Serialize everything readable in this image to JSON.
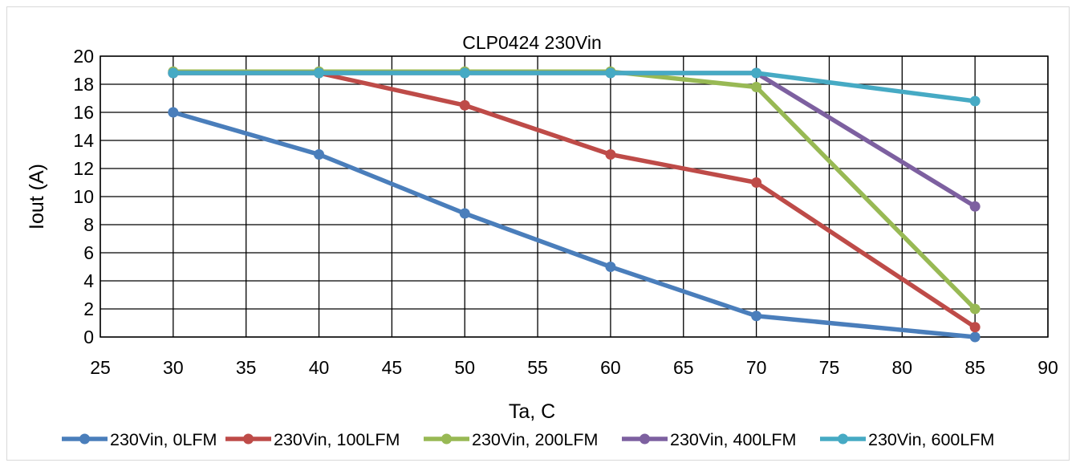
{
  "chart_data": {
    "type": "line",
    "title": "CLP0424 230Vin",
    "xlabel": "Ta, C",
    "ylabel": "Iout (A)",
    "xlim": [
      25,
      90
    ],
    "ylim": [
      0,
      20
    ],
    "xticks": [
      25,
      30,
      35,
      40,
      45,
      50,
      55,
      60,
      65,
      70,
      75,
      80,
      85,
      90
    ],
    "yticks": [
      0,
      2,
      4,
      6,
      8,
      10,
      12,
      14,
      16,
      18,
      20
    ],
    "grid": true,
    "legend_position": "bottom",
    "x": [
      30,
      40,
      50,
      60,
      70,
      85
    ],
    "series": [
      {
        "name": "230Vin, 0LFM",
        "color": "#4a7ebb",
        "values": [
          16,
          13,
          8.8,
          5,
          1.5,
          0
        ]
      },
      {
        "name": "230Vin, 100LFM",
        "color": "#be4b48",
        "values": [
          18.8,
          18.8,
          16.5,
          13,
          11,
          0.7
        ]
      },
      {
        "name": "230Vin, 200LFM",
        "color": "#98b954",
        "values": [
          18.9,
          18.9,
          18.9,
          18.9,
          17.8,
          2
        ]
      },
      {
        "name": "230Vin, 400LFM",
        "color": "#7d60a0",
        "values": [
          18.8,
          18.8,
          18.8,
          18.8,
          18.8,
          9.3
        ]
      },
      {
        "name": "230Vin, 600LFM",
        "color": "#46aac4",
        "values": [
          18.8,
          18.8,
          18.8,
          18.8,
          18.8,
          16.8
        ]
      }
    ]
  }
}
